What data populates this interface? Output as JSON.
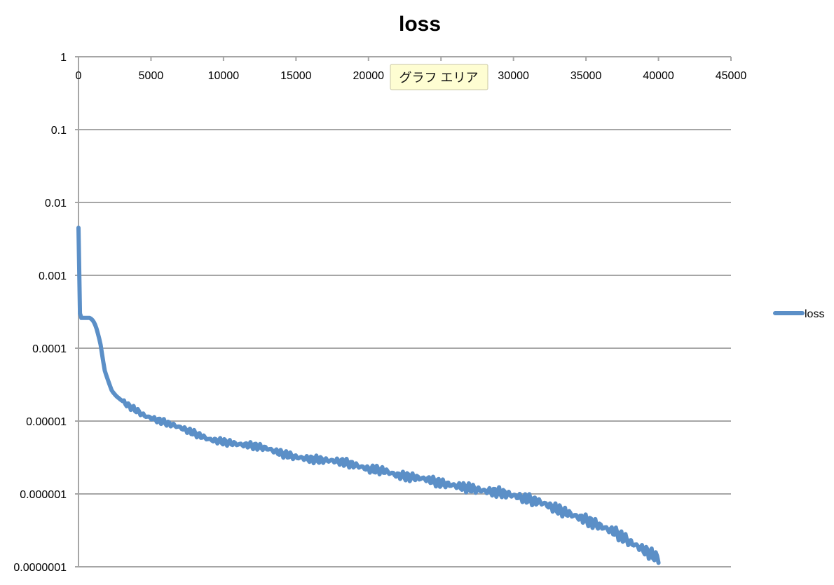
{
  "chart_data": {
    "type": "line",
    "title": "loss",
    "xlabel": "",
    "ylabel": "",
    "xlim": [
      0,
      45000
    ],
    "x_ticks": [
      0,
      5000,
      10000,
      15000,
      20000,
      25000,
      30000,
      35000,
      40000,
      45000
    ],
    "x_tick_labels": [
      "0",
      "5000",
      "10000",
      "15000",
      "20000",
      "25000",
      "30000",
      "35000",
      "40000",
      "45000"
    ],
    "x_axis_position": "top",
    "ylim": [
      1e-07,
      1
    ],
    "y_scale": "log",
    "y_ticks": [
      1,
      0.1,
      0.01,
      0.001,
      0.0001,
      1e-05,
      1e-06,
      1e-07
    ],
    "y_tick_labels": [
      "1",
      "0.1",
      "0.01",
      "0.001",
      "0.0001",
      "0.00001",
      "0.000001",
      "0.0000001"
    ],
    "grid": true,
    "legend_position": "right",
    "series": [
      {
        "name": "loss",
        "color": "#5b8fc7",
        "x": [
          0,
          100,
          200,
          300,
          500,
          800,
          1000,
          1200,
          1500,
          1800,
          2000,
          2300,
          2600,
          3000,
          3500,
          4000,
          4500,
          5000,
          6000,
          7000,
          8000,
          9000,
          10000,
          11000,
          12000,
          13000,
          14000,
          15000,
          16000,
          17000,
          18000,
          19000,
          20000,
          21000,
          22000,
          23000,
          24000,
          25000,
          26000,
          27000,
          28000,
          29000,
          30000,
          31000,
          32000,
          33000,
          34000,
          35000,
          36000,
          37000,
          38000,
          39000,
          40000
        ],
        "y": [
          0.0045,
          0.0003,
          0.00026,
          0.00026,
          0.00026,
          0.00026,
          0.00024,
          0.0002,
          0.00012,
          5e-05,
          3.8e-05,
          2.6e-05,
          2.2e-05,
          1.9e-05,
          1.6e-05,
          1.4e-05,
          1.2e-05,
          1.1e-05,
          9.5e-06,
          8.2e-06,
          6.8e-06,
          5.6e-06,
          5.2e-06,
          4.8e-06,
          4.6e-06,
          4.2e-06,
          3.6e-06,
          3.2e-06,
          3e-06,
          2.9e-06,
          2.8e-06,
          2.5e-06,
          2.2e-06,
          2.1e-06,
          1.8e-06,
          1.7e-06,
          1.6e-06,
          1.4e-06,
          1.3e-06,
          1.2e-06,
          1.1e-06,
          1.05e-06,
          9.5e-07,
          8.5e-07,
          7.5e-07,
          6.2e-07,
          5.2e-07,
          4.4e-07,
          3.6e-07,
          3e-07,
          2.2e-07,
          1.7e-07,
          1.3e-07
        ]
      }
    ],
    "tooltip": "グラフ エリア"
  }
}
